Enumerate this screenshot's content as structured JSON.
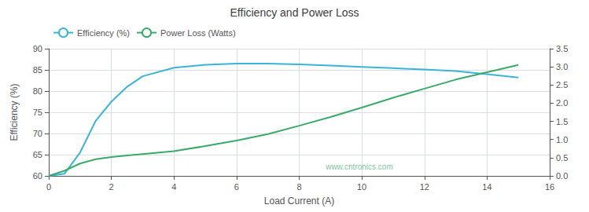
{
  "chart_data": {
    "type": "line",
    "title": "Efficiency and Power Loss",
    "xlabel": "Load Current (A)",
    "ylabel": "Efficiency (%)",
    "xlim": [
      0,
      16
    ],
    "xticks": [
      0,
      2,
      4,
      6,
      8,
      10,
      12,
      14,
      16
    ],
    "ylim": [
      60,
      90
    ],
    "yticks": [
      60,
      65,
      70,
      75,
      80,
      85,
      90
    ],
    "y2lim": [
      0.0,
      3.5
    ],
    "y2ticks": [
      {
        "value": 0.0,
        "label": "0.0"
      },
      0.5,
      {
        "value": 1.0,
        "label": "1.0"
      },
      1.5,
      {
        "value": 2.0,
        "label": "2.0"
      },
      2.5,
      {
        "value": 3.0,
        "label": "3.0"
      },
      3.5
    ],
    "grid": true,
    "legend": "upper left",
    "annotations": [
      "www.cntronics.com"
    ],
    "x": [
      0,
      0.5,
      1.0,
      1.5,
      2.0,
      2.5,
      3.0,
      4.0,
      5.0,
      6.0,
      7.0,
      8.0,
      9.0,
      10.0,
      11.0,
      12.0,
      13.0,
      14.0,
      15.0
    ],
    "series": [
      {
        "name": "Efficiency (%)",
        "color": "#3ab5d5",
        "values": [
          60,
          60.5,
          65.5,
          73.0,
          77.5,
          81.0,
          83.5,
          85.5,
          86.2,
          86.5,
          86.5,
          86.3,
          86.0,
          85.7,
          85.4,
          85.1,
          84.7,
          84.0,
          83.2
        ]
      },
      {
        "name": "Power Loss (Watts)",
        "color": "#3aaa6a",
        "axis": "y2",
        "values": [
          0.0,
          0.14,
          0.34,
          0.46,
          0.52,
          0.56,
          0.6,
          0.68,
          0.82,
          0.97,
          1.15,
          1.38,
          1.62,
          1.88,
          2.15,
          2.4,
          2.65,
          2.85,
          3.05
        ]
      }
    ]
  }
}
